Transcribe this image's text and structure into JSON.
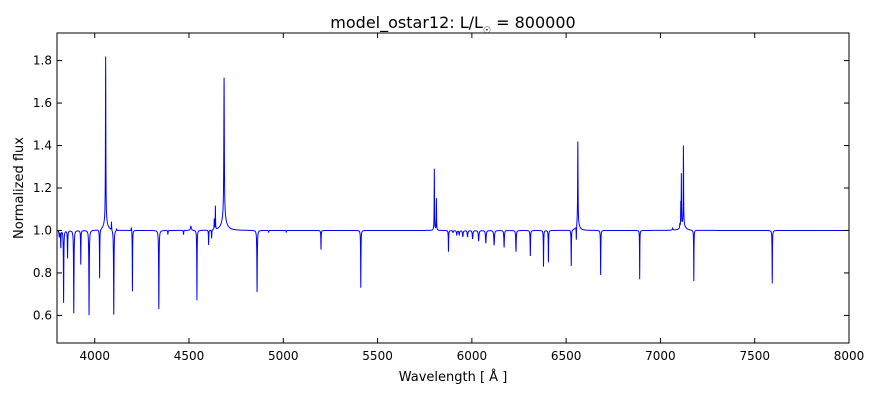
{
  "chart_data": {
    "type": "line",
    "title": "model_ostar12: L/L",
    "title_subscript": "☉",
    "title_suffix": " = 800000",
    "xlabel": "Wavelength [ Å ]",
    "ylabel": "Normalized flux",
    "xlim": [
      3800,
      8000
    ],
    "ylim": [
      0.47,
      1.93
    ],
    "xticks": [
      4000,
      4500,
      5000,
      5500,
      6000,
      6500,
      7000,
      7500,
      8000
    ],
    "yticks": [
      0.6,
      0.8,
      1.0,
      1.2,
      1.4,
      1.6,
      1.8
    ],
    "grid": false,
    "series_color": "#0000ff",
    "continuum": 1.0,
    "lines_note": "spectral features as [wavelength, amplitude (flux offset from continuum), half-width in Å]",
    "lines": [
      [
        3812,
        -0.03,
        1.5
      ],
      [
        3820,
        -0.08,
        1.2
      ],
      [
        3835,
        -0.34,
        1.2
      ],
      [
        3856,
        -0.13,
        1.2
      ],
      [
        3889,
        -0.39,
        1.3
      ],
      [
        3926,
        -0.16,
        1.0
      ],
      [
        3970,
        -0.4,
        1.3
      ],
      [
        4026,
        -0.23,
        1.0
      ],
      [
        4058,
        0.78,
        1.2
      ],
      [
        4058,
        0.04,
        12
      ],
      [
        4089,
        0.04,
        0.8
      ],
      [
        4101,
        -0.4,
        1.3
      ],
      [
        4116,
        0.01,
        1
      ],
      [
        4200,
        -0.29,
        0.9
      ],
      [
        4195,
        0.02,
        2
      ],
      [
        4340,
        -0.37,
        1.3
      ],
      [
        4388,
        -0.02,
        1
      ],
      [
        4471,
        -0.02,
        1
      ],
      [
        4510,
        0.02,
        3
      ],
      [
        4542,
        -0.33,
        1.0
      ],
      [
        4604,
        -0.07,
        1
      ],
      [
        4620,
        -0.04,
        1
      ],
      [
        4634,
        0.05,
        1
      ],
      [
        4640,
        0.11,
        0.8
      ],
      [
        4686,
        0.66,
        1.6
      ],
      [
        4686,
        0.06,
        14
      ],
      [
        4861,
        -0.29,
        1.3
      ],
      [
        4922,
        -0.01,
        1
      ],
      [
        5016,
        -0.01,
        1
      ],
      [
        5200,
        -0.09,
        1
      ],
      [
        5411,
        -0.27,
        1.0
      ],
      [
        5801,
        0.29,
        1.0
      ],
      [
        5812,
        0.15,
        0.9
      ],
      [
        5876,
        -0.1,
        1
      ],
      [
        5900,
        -0.01,
        2
      ],
      [
        5920,
        -0.02,
        2
      ],
      [
        5933,
        -0.02,
        2
      ],
      [
        5952,
        -0.03,
        2
      ],
      [
        5977,
        -0.03,
        2
      ],
      [
        6004,
        -0.04,
        2
      ],
      [
        6036,
        -0.05,
        2
      ],
      [
        6074,
        -0.06,
        2
      ],
      [
        6118,
        -0.07,
        2
      ],
      [
        6171,
        -0.08,
        1.5
      ],
      [
        6234,
        -0.1,
        1.5
      ],
      [
        6310,
        -0.12,
        1.2
      ],
      [
        6380,
        -0.17,
        1.0
      ],
      [
        6406,
        -0.15,
        1.0
      ],
      [
        6527,
        -0.17,
        1.0
      ],
      [
        6554,
        -0.07,
        1
      ],
      [
        6562,
        0.39,
        1.2
      ],
      [
        6562,
        0.03,
        10
      ],
      [
        6683,
        -0.21,
        1.0
      ],
      [
        6890,
        -0.23,
        0.8
      ],
      [
        7065,
        0.01,
        2
      ],
      [
        7103,
        0.02,
        1
      ],
      [
        7108,
        0.11,
        0.8
      ],
      [
        7111,
        0.24,
        0.7
      ],
      [
        7122,
        0.37,
        1.0
      ],
      [
        7120,
        0.03,
        12
      ],
      [
        7177,
        -0.24,
        0.9
      ],
      [
        7593,
        -0.25,
        1.0
      ]
    ]
  }
}
